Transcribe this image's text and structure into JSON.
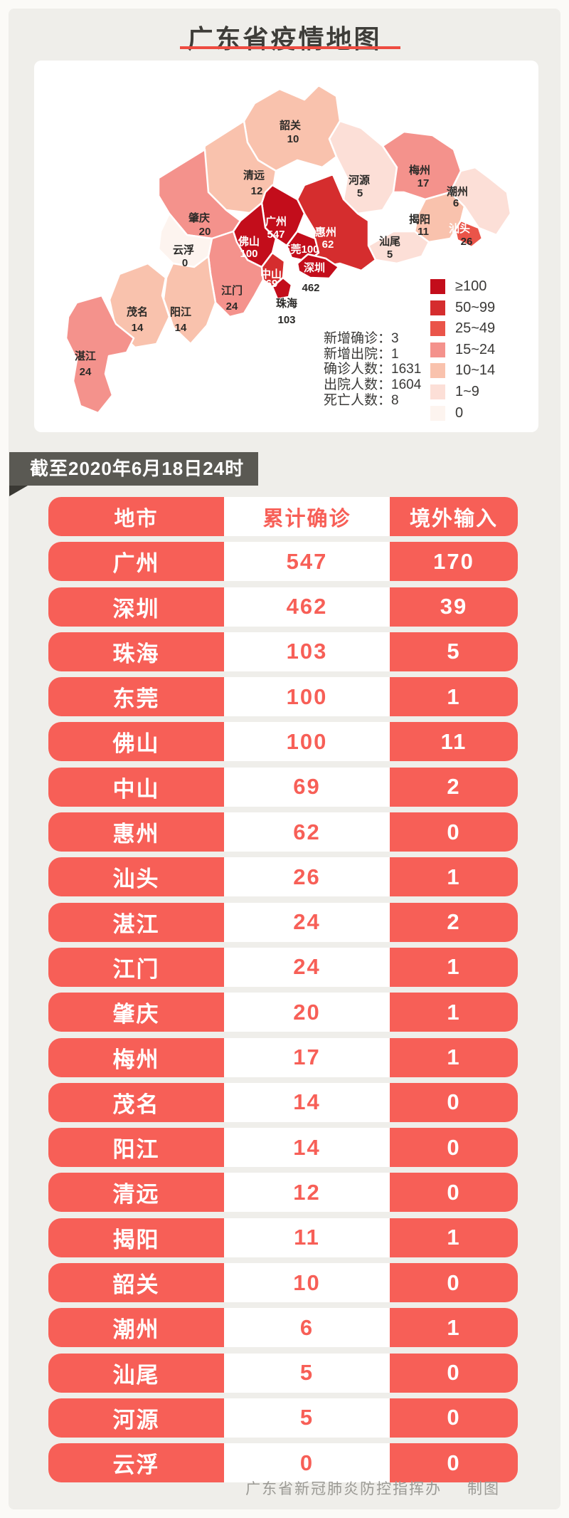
{
  "page": {
    "title": "广东省疫情地图",
    "banner": "截至2020年6月18日24时",
    "footer": {
      "org": "广东省新冠肺炎防控指挥办",
      "credit": "制图"
    }
  },
  "colors": {
    "accent_red": "#f75f57",
    "banner_gray": "#5a5953",
    "title_underline": "#ee4c41"
  },
  "map": {
    "stats": [
      "新增确诊：3",
      "新增出院：1",
      "确诊人数：1631",
      "出院人数：1604",
      "死亡人数：8"
    ],
    "legend": [
      {
        "label": "≥100",
        "color": "#c30d1b"
      },
      {
        "label": "50~99",
        "color": "#d52d2e"
      },
      {
        "label": "25~49",
        "color": "#ea5449"
      },
      {
        "label": "15~24",
        "color": "#f4928c"
      },
      {
        "label": "10~14",
        "color": "#f9c2ad"
      },
      {
        "label": "1~9",
        "color": "#fcdfd7"
      },
      {
        "label": "0",
        "color": "#fdf4ef"
      }
    ],
    "regions": [
      {
        "id": "shaoguan",
        "name": "韶关",
        "value": "10",
        "bucket": 4
      },
      {
        "id": "qingyuan",
        "name": "清远",
        "value": "12",
        "bucket": 4
      },
      {
        "id": "heyuan",
        "name": "河源",
        "value": "5",
        "bucket": 5
      },
      {
        "id": "meizhou",
        "name": "梅州",
        "value": "17",
        "bucket": 3
      },
      {
        "id": "chaozhou",
        "name": "潮州",
        "value": "6",
        "bucket": 5
      },
      {
        "id": "jieyang",
        "name": "揭阳",
        "value": "11",
        "bucket": 4
      },
      {
        "id": "shanwei",
        "name": "汕尾",
        "value": "5",
        "bucket": 5
      },
      {
        "id": "huizhou",
        "name": "惠州",
        "value": "62",
        "bucket": 1
      },
      {
        "id": "zhaoqing",
        "name": "肇庆",
        "value": "20",
        "bucket": 3
      },
      {
        "id": "yunfu",
        "name": "云浮",
        "value": "0",
        "bucket": 6
      },
      {
        "id": "jiangmen",
        "name": "江门",
        "value": "24",
        "bucket": 3
      },
      {
        "id": "yangjiang",
        "name": "阳江",
        "value": "14",
        "bucket": 4
      },
      {
        "id": "maoming",
        "name": "茂名",
        "value": "14",
        "bucket": 4
      },
      {
        "id": "zhanjiang",
        "name": "湛江",
        "value": "24",
        "bucket": 3
      },
      {
        "id": "guangzhou",
        "name": "广州",
        "value": "547",
        "bucket": 0
      },
      {
        "id": "foshan",
        "name": "佛山",
        "value": "100",
        "bucket": 0
      },
      {
        "id": "dongguan",
        "name": "东莞",
        "value": "100",
        "bucket": 0
      },
      {
        "id": "shantou",
        "name": "汕头",
        "value": "26",
        "bucket": 2
      },
      {
        "id": "zhongshan",
        "name": "中山",
        "value": "69",
        "bucket": 1
      },
      {
        "id": "shenzhen",
        "name": "深圳",
        "value": "462",
        "bucket": 0
      },
      {
        "id": "zhuhai",
        "name": "珠海",
        "value": "103",
        "bucket": 0
      }
    ]
  },
  "table": {
    "headers": [
      "地市",
      "累计确诊",
      "境外输入"
    ],
    "rows": [
      [
        "广州",
        "547",
        "170"
      ],
      [
        "深圳",
        "462",
        "39"
      ],
      [
        "珠海",
        "103",
        "5"
      ],
      [
        "东莞",
        "100",
        "1"
      ],
      [
        "佛山",
        "100",
        "11"
      ],
      [
        "中山",
        "69",
        "2"
      ],
      [
        "惠州",
        "62",
        "0"
      ],
      [
        "汕头",
        "26",
        "1"
      ],
      [
        "湛江",
        "24",
        "2"
      ],
      [
        "江门",
        "24",
        "1"
      ],
      [
        "肇庆",
        "20",
        "1"
      ],
      [
        "梅州",
        "17",
        "1"
      ],
      [
        "茂名",
        "14",
        "0"
      ],
      [
        "阳江",
        "14",
        "0"
      ],
      [
        "清远",
        "12",
        "0"
      ],
      [
        "揭阳",
        "11",
        "1"
      ],
      [
        "韶关",
        "10",
        "0"
      ],
      [
        "潮州",
        "6",
        "1"
      ],
      [
        "汕尾",
        "5",
        "0"
      ],
      [
        "河源",
        "5",
        "0"
      ],
      [
        "云浮",
        "0",
        "0"
      ]
    ]
  }
}
